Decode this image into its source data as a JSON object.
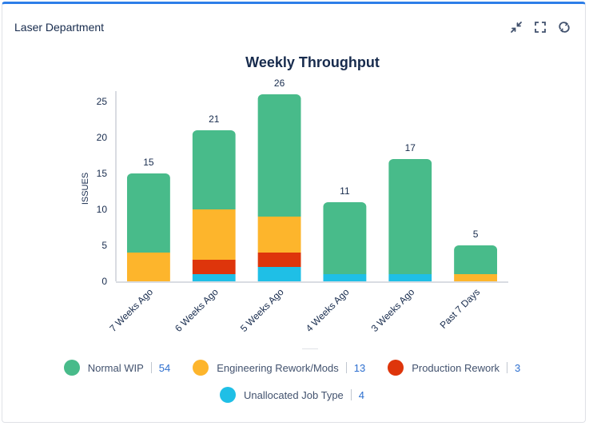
{
  "gadget": {
    "title": "Laser Department"
  },
  "icons": {
    "collapse": "collapse-icon",
    "fullscreen": "fullscreen-icon",
    "refresh": "refresh-icon"
  },
  "chart_data": {
    "type": "bar",
    "stacked": true,
    "title": "Weekly Throughput",
    "xlabel": "",
    "ylabel": "ISSUES",
    "ylim": [
      0,
      26
    ],
    "yticks": [
      0,
      5,
      10,
      15,
      20,
      25
    ],
    "categories": [
      "7 Weeks Ago",
      "6 Weeks Ago",
      "5 Weeks Ago",
      "4 Weeks Ago",
      "3 Weeks Ago",
      "Past 7 Days"
    ],
    "totals": [
      15,
      21,
      26,
      11,
      17,
      5
    ],
    "series": [
      {
        "name": "Unallocated Job Type",
        "color": "#1fbfe6",
        "values": [
          0,
          1,
          2,
          1,
          1,
          0
        ],
        "count": "4"
      },
      {
        "name": "Production Rework",
        "color": "#de350b",
        "values": [
          0,
          2,
          2,
          0,
          0,
          0
        ],
        "count": "3"
      },
      {
        "name": "Engineering Rework/Mods",
        "color": "#fdb52c",
        "values": [
          4,
          7,
          5,
          0,
          0,
          1
        ],
        "count": "13"
      },
      {
        "name": "Normal WIP",
        "color": "#48bb8a",
        "values": [
          11,
          11,
          17,
          10,
          16,
          4
        ],
        "count": "54"
      }
    ],
    "legend_order": [
      "Normal WIP",
      "Engineering Rework/Mods",
      "Production Rework",
      "Unallocated Job Type"
    ]
  }
}
